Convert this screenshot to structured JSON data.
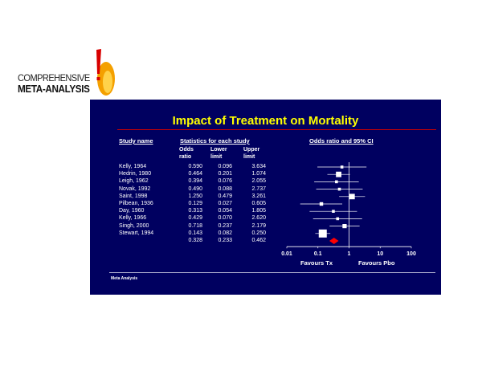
{
  "logo": {
    "line1": "COMPREHENSIVE",
    "line2": "META-ANALYSIS",
    "colors": {
      "flame": "#f4a000",
      "accent": "#d80000"
    }
  },
  "slide": {
    "title": "Impact of Treatment on Mortality",
    "headers": {
      "study": "Study name",
      "stats": "Statistics for each study",
      "plot": "Odds ratio and 95% CI"
    },
    "col_headers": {
      "or": [
        "Odds",
        "ratio"
      ],
      "lo": [
        "Lower",
        "limit"
      ],
      "hi": [
        "Upper",
        "limit"
      ]
    },
    "favours_left": "Favours Tx",
    "favours_right": "Favours Pbo",
    "footer": "Meta Analysis",
    "colors": {
      "background": "#000060",
      "title": "#ffff00",
      "rule": "#cc0000",
      "summary": "#ff0000"
    }
  },
  "chart_data": {
    "type": "forest",
    "scale": "log",
    "xlim": [
      0.01,
      100
    ],
    "ticks": [
      "0.01",
      "0.1",
      "1",
      "10",
      "100"
    ],
    "tick_values": [
      0.01,
      0.1,
      1,
      10,
      100
    ],
    "studies": [
      {
        "name": "Kelly, 1964",
        "or": "0.590",
        "lower": "0.096",
        "upper": "3.634",
        "or_v": 0.59,
        "lower_v": 0.096,
        "upper_v": 3.634,
        "weight": 1
      },
      {
        "name": "Hedrin, 1980",
        "or": "0.464",
        "lower": "0.201",
        "upper": "1.074",
        "or_v": 0.464,
        "lower_v": 0.201,
        "upper_v": 1.074,
        "weight": 3
      },
      {
        "name": "Leigh, 1962",
        "or": "0.394",
        "lower": "0.076",
        "upper": "2.055",
        "or_v": 0.394,
        "lower_v": 0.076,
        "upper_v": 2.055,
        "weight": 1
      },
      {
        "name": "Novak, 1992",
        "or": "0.490",
        "lower": "0.088",
        "upper": "2.737",
        "or_v": 0.49,
        "lower_v": 0.088,
        "upper_v": 2.737,
        "weight": 1
      },
      {
        "name": "Saint, 1998",
        "or": "1.250",
        "lower": "0.479",
        "upper": "3.261",
        "or_v": 1.25,
        "lower_v": 0.479,
        "upper_v": 3.261,
        "weight": 3
      },
      {
        "name": "Pilbean, 1936",
        "or": "0.129",
        "lower": "0.027",
        "upper": "0.605",
        "or_v": 0.129,
        "lower_v": 0.027,
        "upper_v": 0.605,
        "weight": 1.5
      },
      {
        "name": "Day, 1960",
        "or": "0.313",
        "lower": "0.054",
        "upper": "1.805",
        "or_v": 0.313,
        "lower_v": 0.054,
        "upper_v": 1.805,
        "weight": 1
      },
      {
        "name": "Kelly, 1966",
        "or": "0.429",
        "lower": "0.070",
        "upper": "2.620",
        "or_v": 0.429,
        "lower_v": 0.07,
        "upper_v": 2.62,
        "weight": 1
      },
      {
        "name": "Singh, 2000",
        "or": "0.718",
        "lower": "0.237",
        "upper": "2.179",
        "or_v": 0.718,
        "lower_v": 0.237,
        "upper_v": 2.179,
        "weight": 2
      },
      {
        "name": "Stewart, 1994",
        "or": "0.143",
        "lower": "0.082",
        "upper": "0.250",
        "or_v": 0.143,
        "lower_v": 0.082,
        "upper_v": 0.25,
        "weight": 5
      }
    ],
    "summary": {
      "or": "0.328",
      "lower": "0.233",
      "upper": "0.462",
      "or_v": 0.328,
      "lower_v": 0.233,
      "upper_v": 0.462
    }
  }
}
